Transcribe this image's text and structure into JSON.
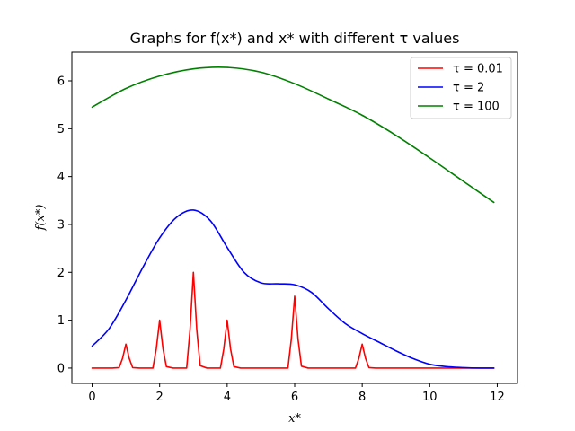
{
  "chart_data": {
    "type": "line",
    "title": "Graphs for f(x*) and x* with different τ values",
    "xlabel": "x*",
    "ylabel": "f(x*)",
    "xlim": [
      -0.6,
      12.6
    ],
    "ylim": [
      -0.32,
      6.6
    ],
    "xticks": [
      0,
      2,
      4,
      6,
      8,
      10,
      12
    ],
    "yticks": [
      0,
      1,
      2,
      3,
      4,
      5,
      6
    ],
    "grid": false,
    "legend_position": "top-right",
    "series": [
      {
        "name": "τ = 0.01",
        "color": "#ff0000",
        "x": [
          0,
          0.6,
          0.8,
          0.9,
          1.0,
          1.1,
          1.2,
          1.4,
          1.8,
          1.9,
          2.0,
          2.1,
          2.2,
          2.4,
          2.8,
          2.9,
          3.0,
          3.1,
          3.2,
          3.4,
          3.8,
          3.9,
          4.0,
          4.1,
          4.2,
          4.4,
          5.8,
          5.9,
          6.0,
          6.1,
          6.2,
          6.4,
          7.8,
          7.9,
          8.0,
          8.1,
          8.2,
          8.4,
          11.9
        ],
        "y": [
          0,
          0,
          0.01,
          0.2,
          0.5,
          0.2,
          0.01,
          0,
          0,
          0.4,
          1.0,
          0.4,
          0.03,
          0,
          0,
          0.8,
          2.0,
          0.8,
          0.05,
          0,
          0,
          0.4,
          1.0,
          0.4,
          0.03,
          0,
          0,
          0.6,
          1.5,
          0.6,
          0.04,
          0,
          0,
          0.2,
          0.5,
          0.2,
          0.01,
          0,
          0
        ]
      },
      {
        "name": "τ = 2",
        "color": "#0000ff",
        "x": [
          0,
          0.5,
          1.0,
          1.5,
          2.0,
          2.5,
          3.0,
          3.5,
          4.0,
          4.5,
          5.0,
          5.5,
          6.0,
          6.5,
          7.0,
          7.5,
          8.0,
          8.5,
          9.0,
          9.5,
          10.0,
          10.5,
          11.0,
          11.5,
          11.9
        ],
        "y": [
          0.46,
          0.82,
          1.42,
          2.1,
          2.72,
          3.15,
          3.3,
          3.08,
          2.52,
          2.0,
          1.78,
          1.76,
          1.74,
          1.58,
          1.24,
          0.93,
          0.72,
          0.54,
          0.36,
          0.2,
          0.08,
          0.03,
          0.01,
          0.0,
          0.0
        ],
        "smooth": true
      },
      {
        "name": "τ = 100",
        "color": "#008000",
        "x": [
          0,
          1,
          2,
          3,
          4,
          5,
          6,
          7,
          8,
          9,
          10,
          11,
          11.9
        ],
        "y": [
          5.45,
          5.84,
          6.1,
          6.25,
          6.28,
          6.18,
          5.94,
          5.62,
          5.28,
          4.86,
          4.39,
          3.9,
          3.46
        ],
        "smooth": true
      }
    ]
  }
}
